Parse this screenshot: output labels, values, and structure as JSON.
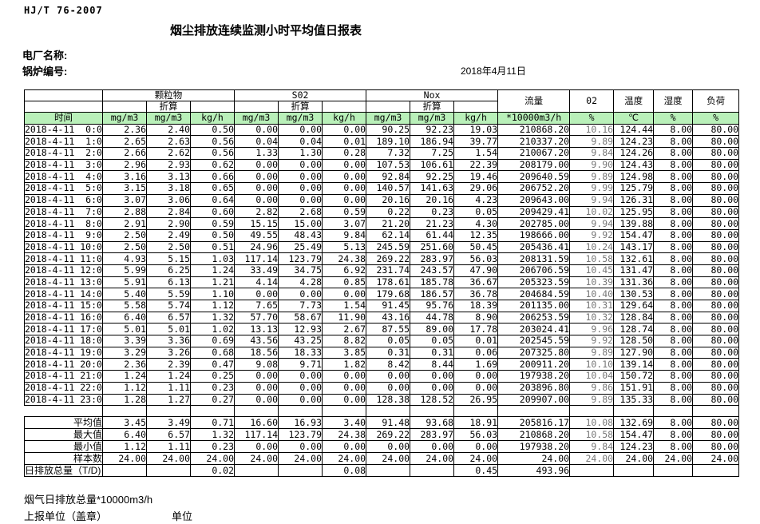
{
  "colors": {
    "header_green": "#b9f0b9",
    "o2_text": "#777777"
  },
  "header": {
    "standard": "HJ/T 76-2007",
    "title": "烟尘排放连续监测小时平均值日报表",
    "plant_label": "电厂名称:",
    "boiler_label": "锅炉编号:",
    "date": "2018年4月11日"
  },
  "table": {
    "time_header": "时间",
    "converted_label": "折算",
    "groups": [
      {
        "label": "颗粒物"
      },
      {
        "label": "S02"
      },
      {
        "label": "Nox"
      }
    ],
    "tail_headers": [
      "流量",
      "02",
      "温度",
      "湿度",
      "负荷"
    ],
    "unit_row": [
      "mg/m3",
      "mg/m3",
      "kg/h",
      "mg/m3",
      "mg/m3",
      "kg/h",
      "mg/m3",
      "mg/m3",
      "kg/h",
      "*10000m3/h",
      "%",
      "℃",
      "%",
      "%"
    ],
    "rows": [
      {
        "time": "2018-4-11  0:00",
        "values": [
          "2.36",
          "2.40",
          "0.50",
          "0.00",
          "0.00",
          "0.00",
          "90.25",
          "92.23",
          "19.03",
          "210868.20",
          "10.16",
          "124.44",
          "8.00",
          "80.00"
        ]
      },
      {
        "time": "2018-4-11  1:00",
        "values": [
          "2.65",
          "2.63",
          "0.56",
          "0.04",
          "0.04",
          "0.01",
          "189.10",
          "186.94",
          "39.77",
          "210337.20",
          "9.89",
          "124.23",
          "8.00",
          "80.00"
        ]
      },
      {
        "time": "2018-4-11  2:00",
        "values": [
          "2.66",
          "2.62",
          "0.56",
          "1.33",
          "1.30",
          "0.28",
          "7.32",
          "7.25",
          "1.54",
          "210067.20",
          "9.84",
          "124.26",
          "8.00",
          "80.00"
        ]
      },
      {
        "time": "2018-4-11  3:00",
        "values": [
          "2.96",
          "2.93",
          "0.62",
          "0.00",
          "0.00",
          "0.00",
          "107.53",
          "106.61",
          "22.39",
          "208179.00",
          "9.90",
          "124.43",
          "8.00",
          "80.00"
        ]
      },
      {
        "time": "2018-4-11  4:00",
        "values": [
          "3.16",
          "3.13",
          "0.66",
          "0.00",
          "0.00",
          "0.00",
          "92.84",
          "92.25",
          "19.46",
          "209640.59",
          "9.89",
          "124.98",
          "8.00",
          "80.00"
        ]
      },
      {
        "time": "2018-4-11  5:00",
        "values": [
          "3.15",
          "3.18",
          "0.65",
          "0.00",
          "0.00",
          "0.00",
          "140.57",
          "141.63",
          "29.06",
          "206752.20",
          "9.99",
          "125.79",
          "8.00",
          "80.00"
        ]
      },
      {
        "time": "2018-4-11  6:00",
        "values": [
          "3.07",
          "3.06",
          "0.64",
          "0.00",
          "0.00",
          "0.00",
          "20.16",
          "20.16",
          "4.23",
          "209643.00",
          "9.94",
          "126.31",
          "8.00",
          "80.00"
        ]
      },
      {
        "time": "2018-4-11  7:00",
        "values": [
          "2.88",
          "2.84",
          "0.60",
          "2.82",
          "2.68",
          "0.59",
          "0.22",
          "0.23",
          "0.05",
          "209429.41",
          "10.02",
          "125.95",
          "8.00",
          "80.00"
        ]
      },
      {
        "time": "2018-4-11  8:00",
        "values": [
          "2.91",
          "2.90",
          "0.59",
          "15.15",
          "15.00",
          "3.07",
          "21.20",
          "21.23",
          "4.30",
          "202785.00",
          "9.94",
          "139.88",
          "8.00",
          "80.00"
        ]
      },
      {
        "time": "2018-4-11  9:00",
        "values": [
          "2.50",
          "2.49",
          "0.50",
          "49.55",
          "48.43",
          "9.84",
          "62.14",
          "61.44",
          "12.35",
          "198666.00",
          "9.92",
          "154.47",
          "8.00",
          "80.00"
        ]
      },
      {
        "time": "2018-4-11 10:00",
        "values": [
          "2.50",
          "2.50",
          "0.51",
          "24.96",
          "25.49",
          "5.13",
          "245.59",
          "251.60",
          "50.45",
          "205436.41",
          "10.24",
          "143.17",
          "8.00",
          "80.00"
        ]
      },
      {
        "time": "2018-4-11 11:00",
        "values": [
          "4.93",
          "5.15",
          "1.03",
          "117.14",
          "123.79",
          "24.38",
          "269.22",
          "283.97",
          "56.03",
          "208131.59",
          "10.58",
          "132.61",
          "8.00",
          "80.00"
        ]
      },
      {
        "time": "2018-4-11 12:00",
        "values": [
          "5.99",
          "6.25",
          "1.24",
          "33.49",
          "34.75",
          "6.92",
          "231.74",
          "243.57",
          "47.90",
          "206706.59",
          "10.45",
          "131.47",
          "8.00",
          "80.00"
        ]
      },
      {
        "time": "2018-4-11 13:00",
        "values": [
          "5.91",
          "6.13",
          "1.21",
          "4.14",
          "4.28",
          "0.85",
          "178.61",
          "185.78",
          "36.67",
          "205323.59",
          "10.39",
          "131.36",
          "8.00",
          "80.00"
        ]
      },
      {
        "time": "2018-4-11 14:00",
        "values": [
          "5.40",
          "5.59",
          "1.10",
          "0.00",
          "0.00",
          "0.00",
          "179.68",
          "186.57",
          "36.78",
          "204684.59",
          "10.40",
          "130.53",
          "8.00",
          "80.00"
        ]
      },
      {
        "time": "2018-4-11 15:00",
        "values": [
          "5.58",
          "5.74",
          "1.12",
          "7.65",
          "7.73",
          "1.54",
          "91.45",
          "95.76",
          "18.39",
          "201135.00",
          "10.31",
          "129.64",
          "8.00",
          "80.00"
        ]
      },
      {
        "time": "2018-4-11 16:00",
        "values": [
          "6.40",
          "6.57",
          "1.32",
          "57.70",
          "58.67",
          "11.90",
          "43.16",
          "44.78",
          "8.90",
          "206253.59",
          "10.32",
          "128.84",
          "8.00",
          "80.00"
        ]
      },
      {
        "time": "2018-4-11 17:00",
        "values": [
          "5.01",
          "5.01",
          "1.02",
          "13.13",
          "12.93",
          "2.67",
          "87.55",
          "89.00",
          "17.78",
          "203024.41",
          "9.96",
          "128.74",
          "8.00",
          "80.00"
        ]
      },
      {
        "time": "2018-4-11 18:00",
        "values": [
          "3.39",
          "3.36",
          "0.69",
          "43.56",
          "43.25",
          "8.82",
          "0.05",
          "0.05",
          "0.01",
          "202545.59",
          "9.92",
          "128.50",
          "8.00",
          "80.00"
        ]
      },
      {
        "time": "2018-4-11 19:00",
        "values": [
          "3.29",
          "3.26",
          "0.68",
          "18.56",
          "18.33",
          "3.85",
          "0.31",
          "0.31",
          "0.06",
          "207325.80",
          "9.89",
          "127.90",
          "8.00",
          "80.00"
        ]
      },
      {
        "time": "2018-4-11 20:00",
        "values": [
          "2.36",
          "2.39",
          "0.47",
          "9.08",
          "9.71",
          "1.82",
          "8.42",
          "8.44",
          "1.69",
          "200911.20",
          "10.10",
          "139.14",
          "8.00",
          "80.00"
        ]
      },
      {
        "time": "2018-4-11 21:00",
        "values": [
          "1.24",
          "1.24",
          "0.25",
          "0.00",
          "0.00",
          "0.00",
          "0.00",
          "0.00",
          "0.00",
          "197938.20",
          "10.04",
          "150.72",
          "8.00",
          "80.00"
        ]
      },
      {
        "time": "2018-4-11 22:00",
        "values": [
          "1.12",
          "1.11",
          "0.23",
          "0.00",
          "0.00",
          "0.00",
          "0.00",
          "0.00",
          "0.00",
          "203896.80",
          "9.86",
          "151.91",
          "8.00",
          "80.00"
        ]
      },
      {
        "time": "2018-4-11 23:00",
        "values": [
          "1.28",
          "1.27",
          "0.27",
          "0.00",
          "0.00",
          "0.00",
          "128.38",
          "128.52",
          "26.95",
          "209907.00",
          "9.89",
          "135.33",
          "8.00",
          "80.00"
        ]
      }
    ],
    "summary_rows": [
      {
        "label": "平均值",
        "values": [
          "3.45",
          "3.49",
          "0.71",
          "16.60",
          "16.93",
          "3.40",
          "91.48",
          "93.68",
          "18.91",
          "205816.17",
          "10.08",
          "132.69",
          "8.00",
          "80.00"
        ]
      },
      {
        "label": "最大值",
        "values": [
          "6.40",
          "6.57",
          "1.32",
          "117.14",
          "123.79",
          "24.38",
          "269.22",
          "283.97",
          "56.03",
          "210868.20",
          "10.58",
          "154.47",
          "8.00",
          "80.00"
        ]
      },
      {
        "label": "最小值",
        "values": [
          "1.12",
          "1.11",
          "0.23",
          "0.00",
          "0.00",
          "0.00",
          "0.00",
          "0.00",
          "0.00",
          "197938.20",
          "9.84",
          "124.23",
          "8.00",
          "80.00"
        ]
      },
      {
        "label": "样本数",
        "values": [
          "24.00",
          "24.00",
          "24.00",
          "24.00",
          "24.00",
          "24.00",
          "24.00",
          "24.00",
          "24.00",
          "24.00",
          "24.00",
          "24.00",
          "24.00",
          "24.00"
        ]
      },
      {
        "label": "日排放总量（T/D)",
        "values": [
          "",
          "",
          "0.02",
          "",
          "",
          "0.08",
          "",
          "",
          "0.45",
          "493.96",
          "",
          "",
          "",
          ""
        ]
      }
    ]
  },
  "footer": {
    "total_flue_gas": "烟气日排放总量*10000m3/h",
    "report_unit": "上报单位（盖章）",
    "unit": "单位"
  }
}
